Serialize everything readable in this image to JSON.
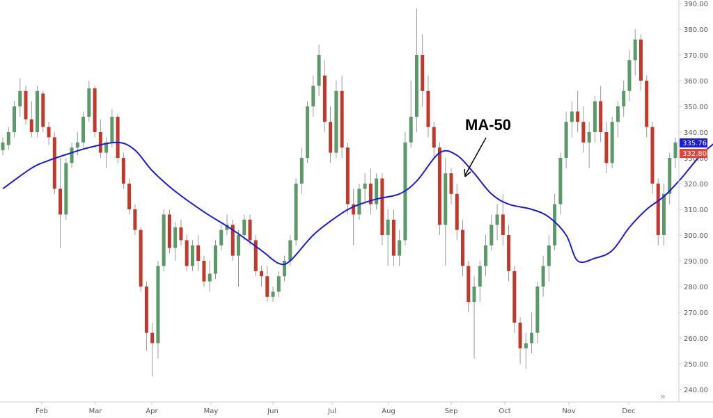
{
  "chart_data": {
    "type": "candlestick",
    "title": "",
    "xlabel": "",
    "ylabel": "",
    "ylim": [
      235,
      391
    ],
    "y_ticks": [
      240,
      250,
      260,
      270,
      280,
      290,
      300,
      310,
      320,
      330,
      340,
      350,
      360,
      370,
      380,
      390
    ],
    "x_ticks": [
      "Feb",
      "Mar",
      "Apr",
      "May",
      "Jun",
      "Jul",
      "Aug",
      "Sep",
      "Oct",
      "Nov",
      "Dec"
    ],
    "grid": false,
    "colors": {
      "up": "#5b9a68",
      "down": "#c0392b",
      "ma": "#1a1adb",
      "last_price_badge": "#1a1adb",
      "ma_badge": "#e0453a",
      "axis": "#cccccc"
    },
    "last_price_label": "335.76",
    "ma_label_value": "332.80",
    "annotation": {
      "text": "MA-50"
    },
    "ma_curve": [
      {
        "month": 0,
        "value": 318
      },
      {
        "month": 0.5,
        "value": 326
      },
      {
        "month": 0.8,
        "value": 329
      },
      {
        "month": 1.2,
        "value": 332
      },
      {
        "month": 1.5,
        "value": 334
      },
      {
        "month": 2.0,
        "value": 336
      },
      {
        "month": 2.3,
        "value": 333
      },
      {
        "month": 2.6,
        "value": 325
      },
      {
        "month": 3.0,
        "value": 317
      },
      {
        "month": 3.5,
        "value": 309
      },
      {
        "month": 4.0,
        "value": 302
      },
      {
        "month": 4.5,
        "value": 294
      },
      {
        "month": 4.8,
        "value": 289
      },
      {
        "month": 5.0,
        "value": 290
      },
      {
        "month": 5.4,
        "value": 300
      },
      {
        "month": 5.8,
        "value": 307
      },
      {
        "month": 6.1,
        "value": 311
      },
      {
        "month": 6.5,
        "value": 314
      },
      {
        "month": 6.9,
        "value": 316
      },
      {
        "month": 7.2,
        "value": 321
      },
      {
        "month": 7.6,
        "value": 332
      },
      {
        "month": 7.9,
        "value": 331
      },
      {
        "month": 8.2,
        "value": 324
      },
      {
        "month": 8.5,
        "value": 316
      },
      {
        "month": 8.8,
        "value": 312
      },
      {
        "month": 9.2,
        "value": 310
      },
      {
        "month": 9.5,
        "value": 307
      },
      {
        "month": 9.8,
        "value": 300
      },
      {
        "month": 10.0,
        "value": 290
      },
      {
        "month": 10.3,
        "value": 291
      },
      {
        "month": 10.6,
        "value": 294
      },
      {
        "month": 10.9,
        "value": 303
      },
      {
        "month": 11.2,
        "value": 310
      },
      {
        "month": 11.5,
        "value": 315
      },
      {
        "month": 11.8,
        "value": 322
      },
      {
        "month": 12.1,
        "value": 330
      },
      {
        "month": 12.4,
        "value": 336
      },
      {
        "month": 12.6,
        "value": 337
      }
    ],
    "candles": [
      {
        "m": 0.0,
        "o": 333,
        "h": 338,
        "l": 331,
        "c": 336
      },
      {
        "m": 0.1,
        "o": 335,
        "h": 342,
        "l": 333,
        "c": 340
      },
      {
        "m": 0.2,
        "o": 340,
        "h": 352,
        "l": 338,
        "c": 350
      },
      {
        "m": 0.3,
        "o": 350,
        "h": 361,
        "l": 346,
        "c": 356
      },
      {
        "m": 0.4,
        "o": 356,
        "h": 358,
        "l": 343,
        "c": 345
      },
      {
        "m": 0.5,
        "o": 345,
        "h": 352,
        "l": 338,
        "c": 340
      },
      {
        "m": 0.6,
        "o": 340,
        "h": 358,
        "l": 338,
        "c": 356
      },
      {
        "m": 0.7,
        "o": 355,
        "h": 356,
        "l": 340,
        "c": 342
      },
      {
        "m": 0.8,
        "o": 342,
        "h": 344,
        "l": 335,
        "c": 338
      },
      {
        "m": 0.9,
        "o": 338,
        "h": 340,
        "l": 316,
        "c": 318
      },
      {
        "m": 1.0,
        "o": 318,
        "h": 330,
        "l": 295,
        "c": 308
      },
      {
        "m": 1.1,
        "o": 308,
        "h": 330,
        "l": 306,
        "c": 328
      },
      {
        "m": 1.2,
        "o": 328,
        "h": 336,
        "l": 326,
        "c": 334
      },
      {
        "m": 1.3,
        "o": 334,
        "h": 340,
        "l": 331,
        "c": 336
      },
      {
        "m": 1.4,
        "o": 336,
        "h": 348,
        "l": 334,
        "c": 346
      },
      {
        "m": 1.5,
        "o": 346,
        "h": 360,
        "l": 344,
        "c": 357
      },
      {
        "m": 1.6,
        "o": 357,
        "h": 358,
        "l": 338,
        "c": 340
      },
      {
        "m": 1.7,
        "o": 340,
        "h": 345,
        "l": 330,
        "c": 332
      },
      {
        "m": 1.8,
        "o": 332,
        "h": 338,
        "l": 326,
        "c": 336
      },
      {
        "m": 1.9,
        "o": 336,
        "h": 349,
        "l": 334,
        "c": 346
      },
      {
        "m": 2.0,
        "o": 346,
        "h": 347,
        "l": 328,
        "c": 330
      },
      {
        "m": 2.1,
        "o": 330,
        "h": 332,
        "l": 318,
        "c": 320
      },
      {
        "m": 2.2,
        "o": 320,
        "h": 322,
        "l": 308,
        "c": 310
      },
      {
        "m": 2.3,
        "o": 310,
        "h": 312,
        "l": 300,
        "c": 302
      },
      {
        "m": 2.4,
        "o": 302,
        "h": 303,
        "l": 278,
        "c": 280
      },
      {
        "m": 2.5,
        "o": 280,
        "h": 282,
        "l": 255,
        "c": 262
      },
      {
        "m": 2.6,
        "o": 262,
        "h": 266,
        "l": 245,
        "c": 258
      },
      {
        "m": 2.7,
        "o": 258,
        "h": 290,
        "l": 252,
        "c": 288
      },
      {
        "m": 2.8,
        "o": 288,
        "h": 310,
        "l": 286,
        "c": 308
      },
      {
        "m": 2.9,
        "o": 308,
        "h": 310,
        "l": 293,
        "c": 295
      },
      {
        "m": 3.0,
        "o": 295,
        "h": 305,
        "l": 290,
        "c": 303
      },
      {
        "m": 3.1,
        "o": 303,
        "h": 306,
        "l": 296,
        "c": 298
      },
      {
        "m": 3.2,
        "o": 298,
        "h": 300,
        "l": 286,
        "c": 288
      },
      {
        "m": 3.3,
        "o": 288,
        "h": 298,
        "l": 286,
        "c": 296
      },
      {
        "m": 3.4,
        "o": 296,
        "h": 300,
        "l": 286,
        "c": 290
      },
      {
        "m": 3.5,
        "o": 290,
        "h": 292,
        "l": 280,
        "c": 282
      },
      {
        "m": 3.6,
        "o": 282,
        "h": 290,
        "l": 278,
        "c": 285
      },
      {
        "m": 3.7,
        "o": 285,
        "h": 298,
        "l": 283,
        "c": 296
      },
      {
        "m": 3.8,
        "o": 296,
        "h": 304,
        "l": 294,
        "c": 302
      },
      {
        "m": 3.9,
        "o": 302,
        "h": 308,
        "l": 300,
        "c": 304
      },
      {
        "m": 4.0,
        "o": 304,
        "h": 306,
        "l": 290,
        "c": 292
      },
      {
        "m": 4.1,
        "o": 292,
        "h": 302,
        "l": 280,
        "c": 300
      },
      {
        "m": 4.2,
        "o": 300,
        "h": 308,
        "l": 298,
        "c": 306
      },
      {
        "m": 4.3,
        "o": 306,
        "h": 308,
        "l": 296,
        "c": 298
      },
      {
        "m": 4.4,
        "o": 298,
        "h": 300,
        "l": 284,
        "c": 286
      },
      {
        "m": 4.5,
        "o": 286,
        "h": 288,
        "l": 280,
        "c": 284
      },
      {
        "m": 4.6,
        "o": 284,
        "h": 288,
        "l": 274,
        "c": 276
      },
      {
        "m": 4.7,
        "o": 276,
        "h": 280,
        "l": 274,
        "c": 278
      },
      {
        "m": 4.8,
        "o": 278,
        "h": 286,
        "l": 276,
        "c": 284
      },
      {
        "m": 4.9,
        "o": 284,
        "h": 292,
        "l": 282,
        "c": 290
      },
      {
        "m": 5.0,
        "o": 290,
        "h": 300,
        "l": 288,
        "c": 298
      },
      {
        "m": 5.1,
        "o": 298,
        "h": 322,
        "l": 296,
        "c": 320
      },
      {
        "m": 5.2,
        "o": 320,
        "h": 334,
        "l": 316,
        "c": 330
      },
      {
        "m": 5.3,
        "o": 330,
        "h": 352,
        "l": 328,
        "c": 350
      },
      {
        "m": 5.4,
        "o": 350,
        "h": 362,
        "l": 346,
        "c": 358
      },
      {
        "m": 5.5,
        "o": 358,
        "h": 374,
        "l": 354,
        "c": 370
      },
      {
        "m": 5.6,
        "o": 362,
        "h": 368,
        "l": 340,
        "c": 344
      },
      {
        "m": 5.7,
        "o": 344,
        "h": 350,
        "l": 328,
        "c": 332
      },
      {
        "m": 5.8,
        "o": 332,
        "h": 360,
        "l": 330,
        "c": 356
      },
      {
        "m": 5.9,
        "o": 356,
        "h": 362,
        "l": 330,
        "c": 334
      },
      {
        "m": 6.0,
        "o": 334,
        "h": 336,
        "l": 308,
        "c": 312
      },
      {
        "m": 6.1,
        "o": 312,
        "h": 318,
        "l": 296,
        "c": 308
      },
      {
        "m": 6.2,
        "o": 308,
        "h": 320,
        "l": 306,
        "c": 318
      },
      {
        "m": 6.3,
        "o": 318,
        "h": 324,
        "l": 312,
        "c": 320
      },
      {
        "m": 6.4,
        "o": 320,
        "h": 326,
        "l": 308,
        "c": 312
      },
      {
        "m": 6.5,
        "o": 312,
        "h": 324,
        "l": 310,
        "c": 322
      },
      {
        "m": 6.6,
        "o": 322,
        "h": 324,
        "l": 296,
        "c": 300
      },
      {
        "m": 6.7,
        "o": 300,
        "h": 310,
        "l": 288,
        "c": 306
      },
      {
        "m": 6.8,
        "o": 306,
        "h": 310,
        "l": 288,
        "c": 292
      },
      {
        "m": 6.9,
        "o": 292,
        "h": 302,
        "l": 288,
        "c": 298
      },
      {
        "m": 7.0,
        "o": 298,
        "h": 340,
        "l": 296,
        "c": 336
      },
      {
        "m": 7.1,
        "o": 336,
        "h": 360,
        "l": 334,
        "c": 346
      },
      {
        "m": 7.2,
        "o": 346,
        "h": 388,
        "l": 340,
        "c": 370
      },
      {
        "m": 7.3,
        "o": 370,
        "h": 378,
        "l": 350,
        "c": 356
      },
      {
        "m": 7.4,
        "o": 356,
        "h": 362,
        "l": 338,
        "c": 342
      },
      {
        "m": 7.5,
        "o": 342,
        "h": 344,
        "l": 330,
        "c": 334
      },
      {
        "m": 7.6,
        "o": 334,
        "h": 336,
        "l": 300,
        "c": 304
      },
      {
        "m": 7.7,
        "o": 304,
        "h": 330,
        "l": 288,
        "c": 324
      },
      {
        "m": 7.8,
        "o": 324,
        "h": 326,
        "l": 312,
        "c": 316
      },
      {
        "m": 7.9,
        "o": 316,
        "h": 320,
        "l": 298,
        "c": 302
      },
      {
        "m": 8.0,
        "o": 302,
        "h": 306,
        "l": 284,
        "c": 288
      },
      {
        "m": 8.1,
        "o": 288,
        "h": 290,
        "l": 270,
        "c": 274
      },
      {
        "m": 8.2,
        "o": 274,
        "h": 284,
        "l": 252,
        "c": 280
      },
      {
        "m": 8.3,
        "o": 280,
        "h": 290,
        "l": 274,
        "c": 288
      },
      {
        "m": 8.4,
        "o": 288,
        "h": 300,
        "l": 284,
        "c": 296
      },
      {
        "m": 8.5,
        "o": 296,
        "h": 308,
        "l": 294,
        "c": 304
      },
      {
        "m": 8.6,
        "o": 304,
        "h": 312,
        "l": 298,
        "c": 308
      },
      {
        "m": 8.7,
        "o": 308,
        "h": 316,
        "l": 296,
        "c": 300
      },
      {
        "m": 8.8,
        "o": 300,
        "h": 304,
        "l": 282,
        "c": 286
      },
      {
        "m": 8.9,
        "o": 286,
        "h": 288,
        "l": 262,
        "c": 266
      },
      {
        "m": 9.0,
        "o": 266,
        "h": 268,
        "l": 250,
        "c": 256
      },
      {
        "m": 9.1,
        "o": 256,
        "h": 262,
        "l": 248,
        "c": 258
      },
      {
        "m": 9.2,
        "o": 258,
        "h": 270,
        "l": 254,
        "c": 262
      },
      {
        "m": 9.3,
        "o": 262,
        "h": 282,
        "l": 258,
        "c": 280
      },
      {
        "m": 9.4,
        "o": 280,
        "h": 292,
        "l": 276,
        "c": 288
      },
      {
        "m": 9.5,
        "o": 288,
        "h": 300,
        "l": 282,
        "c": 296
      },
      {
        "m": 9.6,
        "o": 296,
        "h": 316,
        "l": 294,
        "c": 312
      },
      {
        "m": 9.7,
        "o": 312,
        "h": 332,
        "l": 308,
        "c": 330
      },
      {
        "m": 9.8,
        "o": 330,
        "h": 348,
        "l": 326,
        "c": 344
      },
      {
        "m": 9.9,
        "o": 344,
        "h": 352,
        "l": 338,
        "c": 348
      },
      {
        "m": 10.0,
        "o": 348,
        "h": 356,
        "l": 340,
        "c": 344
      },
      {
        "m": 10.1,
        "o": 344,
        "h": 350,
        "l": 332,
        "c": 336
      },
      {
        "m": 10.2,
        "o": 336,
        "h": 344,
        "l": 326,
        "c": 340
      },
      {
        "m": 10.3,
        "o": 340,
        "h": 354,
        "l": 336,
        "c": 352
      },
      {
        "m": 10.4,
        "o": 352,
        "h": 358,
        "l": 336,
        "c": 340
      },
      {
        "m": 10.5,
        "o": 340,
        "h": 344,
        "l": 324,
        "c": 328
      },
      {
        "m": 10.6,
        "o": 328,
        "h": 346,
        "l": 326,
        "c": 344
      },
      {
        "m": 10.7,
        "o": 344,
        "h": 352,
        "l": 338,
        "c": 350
      },
      {
        "m": 10.8,
        "o": 350,
        "h": 360,
        "l": 346,
        "c": 356
      },
      {
        "m": 10.9,
        "o": 356,
        "h": 372,
        "l": 352,
        "c": 368
      },
      {
        "m": 11.0,
        "o": 368,
        "h": 380,
        "l": 362,
        "c": 376
      },
      {
        "m": 11.1,
        "o": 376,
        "h": 378,
        "l": 356,
        "c": 360
      },
      {
        "m": 11.2,
        "o": 360,
        "h": 362,
        "l": 338,
        "c": 342
      },
      {
        "m": 11.3,
        "o": 342,
        "h": 344,
        "l": 316,
        "c": 320
      },
      {
        "m": 11.4,
        "o": 320,
        "h": 322,
        "l": 296,
        "c": 300
      },
      {
        "m": 11.5,
        "o": 300,
        "h": 320,
        "l": 296,
        "c": 316
      },
      {
        "m": 11.6,
        "o": 316,
        "h": 332,
        "l": 312,
        "c": 330
      },
      {
        "m": 11.7,
        "o": 330,
        "h": 338,
        "l": 326,
        "c": 336
      }
    ]
  },
  "page": {
    "scroll_glyph": "»"
  }
}
